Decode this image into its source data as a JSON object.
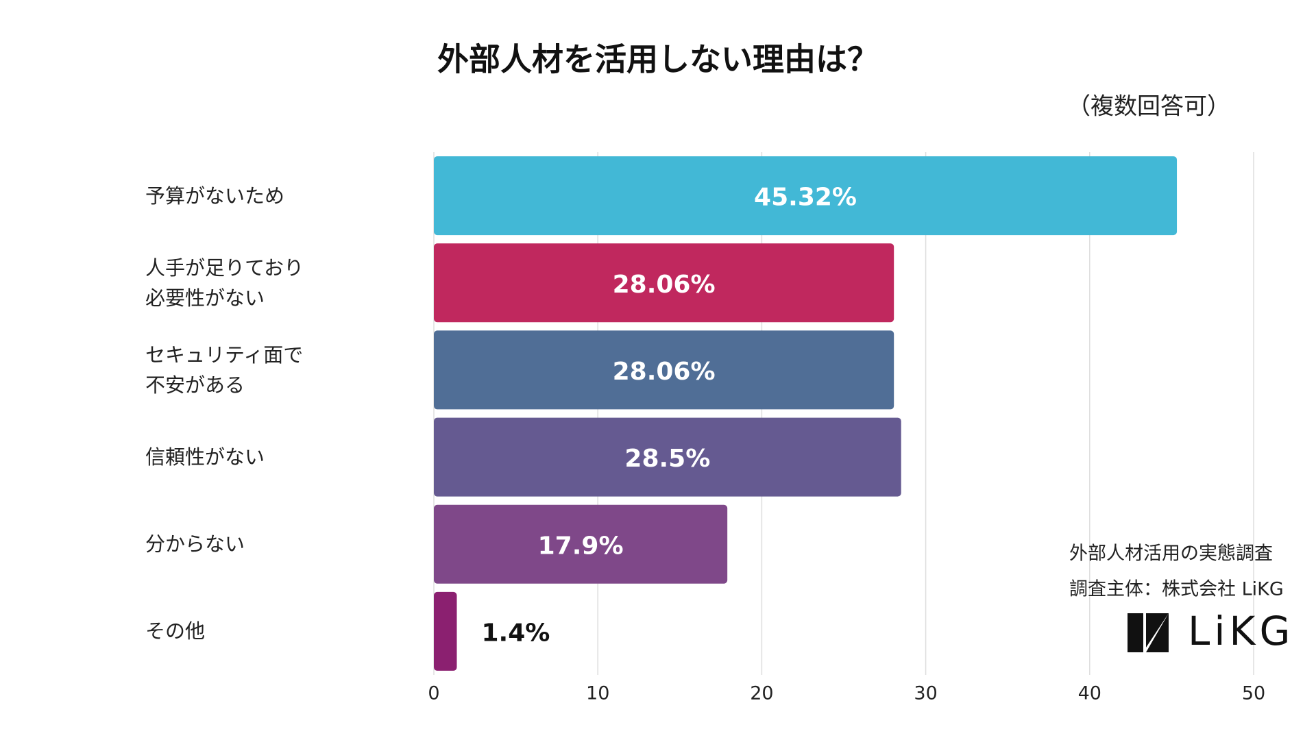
{
  "chart_data": {
    "type": "hbar",
    "title": "外部人材を活用しない理由は？",
    "subtitle": "（複数回答可）",
    "categories": [
      "予算がないため",
      "人手が足りており\n必要性がない",
      "セキュリティ面で\n不安がある",
      "信頼性がない",
      "分からない",
      "その他"
    ],
    "values": [
      45.32,
      28.06,
      28.06,
      28.5,
      17.9,
      1.4
    ],
    "value_labels": [
      "45.32%",
      "28.06%",
      "28.06%",
      "28.5%",
      "17.9%",
      "1.4%"
    ],
    "colors": [
      "#42b8d6",
      "#c0285e",
      "#506e96",
      "#655a91",
      "#7f4889",
      "#8b2070"
    ],
    "xlim": [
      0,
      50
    ],
    "xticks": [
      0,
      10,
      20,
      30,
      40,
      50
    ],
    "grid": true,
    "notes": [
      "外部人材活用の実態調査",
      "調査主体：株式会社 LiKG"
    ],
    "logo": "LiKG"
  }
}
